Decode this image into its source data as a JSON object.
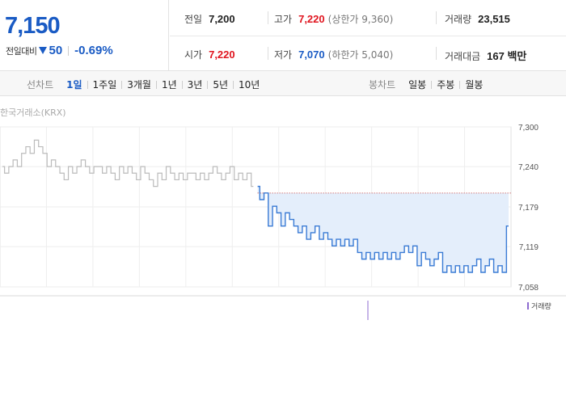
{
  "quote": {
    "price": "7,150",
    "change_label": "전일대비",
    "change_value": "50",
    "change_pct": "-0.69%",
    "direction_icon": "down-triangle-icon",
    "stats": {
      "prev_label": "전일",
      "prev_value": "7,200",
      "open_label": "시가",
      "open_value": "7,220",
      "high_label": "고가",
      "high_value": "7,220",
      "upper_limit": "(상한가 9,360)",
      "low_label": "저가",
      "low_value": "7,070",
      "lower_limit": "(하한가 5,040)",
      "volume_label": "거래량",
      "volume_value": "23,515",
      "amount_label": "거래대금",
      "amount_value": "167 백만"
    }
  },
  "tabs": {
    "line_title": "선차트",
    "line_items": [
      "1일",
      "1주일",
      "3개월",
      "1년",
      "3년",
      "5년",
      "10년"
    ],
    "line_active": "1일",
    "candle_title": "봉차트",
    "candle_items": [
      "일봉",
      "주봉",
      "월봉"
    ]
  },
  "chart_source": "한국거래소(KRX)",
  "volume_legend": "거래량",
  "colors": {
    "up": "#e0151f",
    "down": "#1a5bc4",
    "line_today": "#3a7bd5",
    "line_prev": "#bbbbbb",
    "fill": "#e4eefb",
    "volume": "#8d6bd0"
  },
  "chart_data": {
    "type": "line",
    "ylim": [
      7058,
      7300
    ],
    "ytick_labels": [
      "7,300",
      "7,240",
      "7,179",
      "7,119",
      "7,058"
    ],
    "ytick_values": [
      7300,
      7240,
      7179,
      7119,
      7058
    ],
    "reference_price": 7200,
    "series": [
      {
        "values": [
          7240,
          7230,
          7240,
          7250,
          7240,
          7260,
          7270,
          7260,
          7280,
          7270,
          7260,
          7240,
          7250,
          7240,
          7230,
          7220,
          7240,
          7230,
          7240,
          7250,
          7240,
          7230,
          7240,
          7240,
          7230,
          7240,
          7230,
          7220,
          7240,
          7230,
          7240,
          7230,
          7220,
          7240,
          7230,
          7220,
          7210,
          7230,
          7220,
          7240,
          7230,
          7220,
          7230,
          7220,
          7230,
          7230,
          7220,
          7230,
          7220,
          7230,
          7240,
          7230,
          7220,
          7230,
          7240,
          7220,
          7230,
          7220,
          7230,
          7210
        ]
      },
      {
        "values": [
          7210,
          7190,
          7200,
          7150,
          7180,
          7170,
          7150,
          7170,
          7160,
          7150,
          7140,
          7150,
          7130,
          7140,
          7150,
          7130,
          7140,
          7130,
          7120,
          7130,
          7120,
          7130,
          7120,
          7130,
          7110,
          7100,
          7110,
          7100,
          7110,
          7100,
          7110,
          7100,
          7110,
          7100,
          7110,
          7120,
          7110,
          7120,
          7090,
          7110,
          7100,
          7090,
          7100,
          7110,
          7080,
          7090,
          7080,
          7090,
          7080,
          7090,
          7080,
          7090,
          7100,
          7080,
          7090,
          7100,
          7080,
          7090,
          7080,
          7150
        ]
      }
    ]
  }
}
